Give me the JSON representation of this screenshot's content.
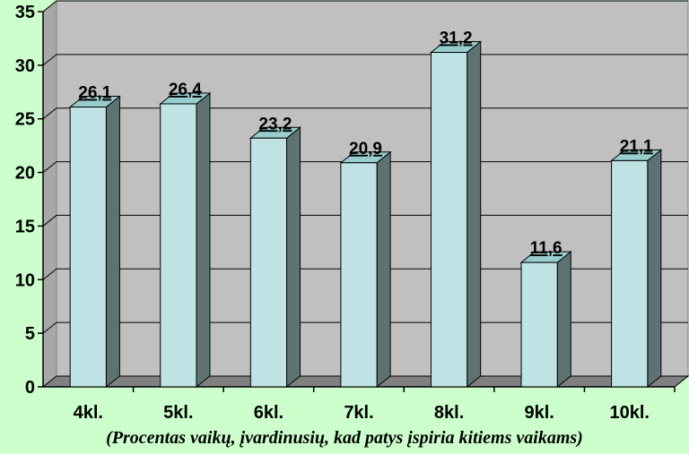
{
  "chart_data": {
    "type": "bar",
    "categories": [
      "4kl.",
      "5kl.",
      "6kl.",
      "7kl.",
      "8kl.",
      "9kl.",
      "10kl."
    ],
    "values": [
      26.1,
      26.4,
      23.2,
      20.9,
      31.2,
      11.6,
      21.1
    ],
    "value_labels": [
      "26,1",
      "26,4",
      "23,2",
      "20,9",
      "31,2",
      "11,6",
      "21,1"
    ],
    "title": "",
    "xlabel": "(Procentas vaikų, įvardinusių, kad patys įspiria kitiems vaikams)",
    "ylabel": "",
    "ylim": [
      0,
      35
    ],
    "yticks": [
      "0",
      "5",
      "10",
      "15",
      "20",
      "25",
      "30",
      "35"
    ],
    "grid": true,
    "legend": "none",
    "colors": {
      "background": "#ccffcc",
      "plot_back": "#c0c0c0",
      "plot_floor": "#808080",
      "bar_front": "#bfe3e4",
      "bar_top": "#99cccc",
      "bar_side": "#5f7272",
      "grid": "#000000"
    }
  }
}
